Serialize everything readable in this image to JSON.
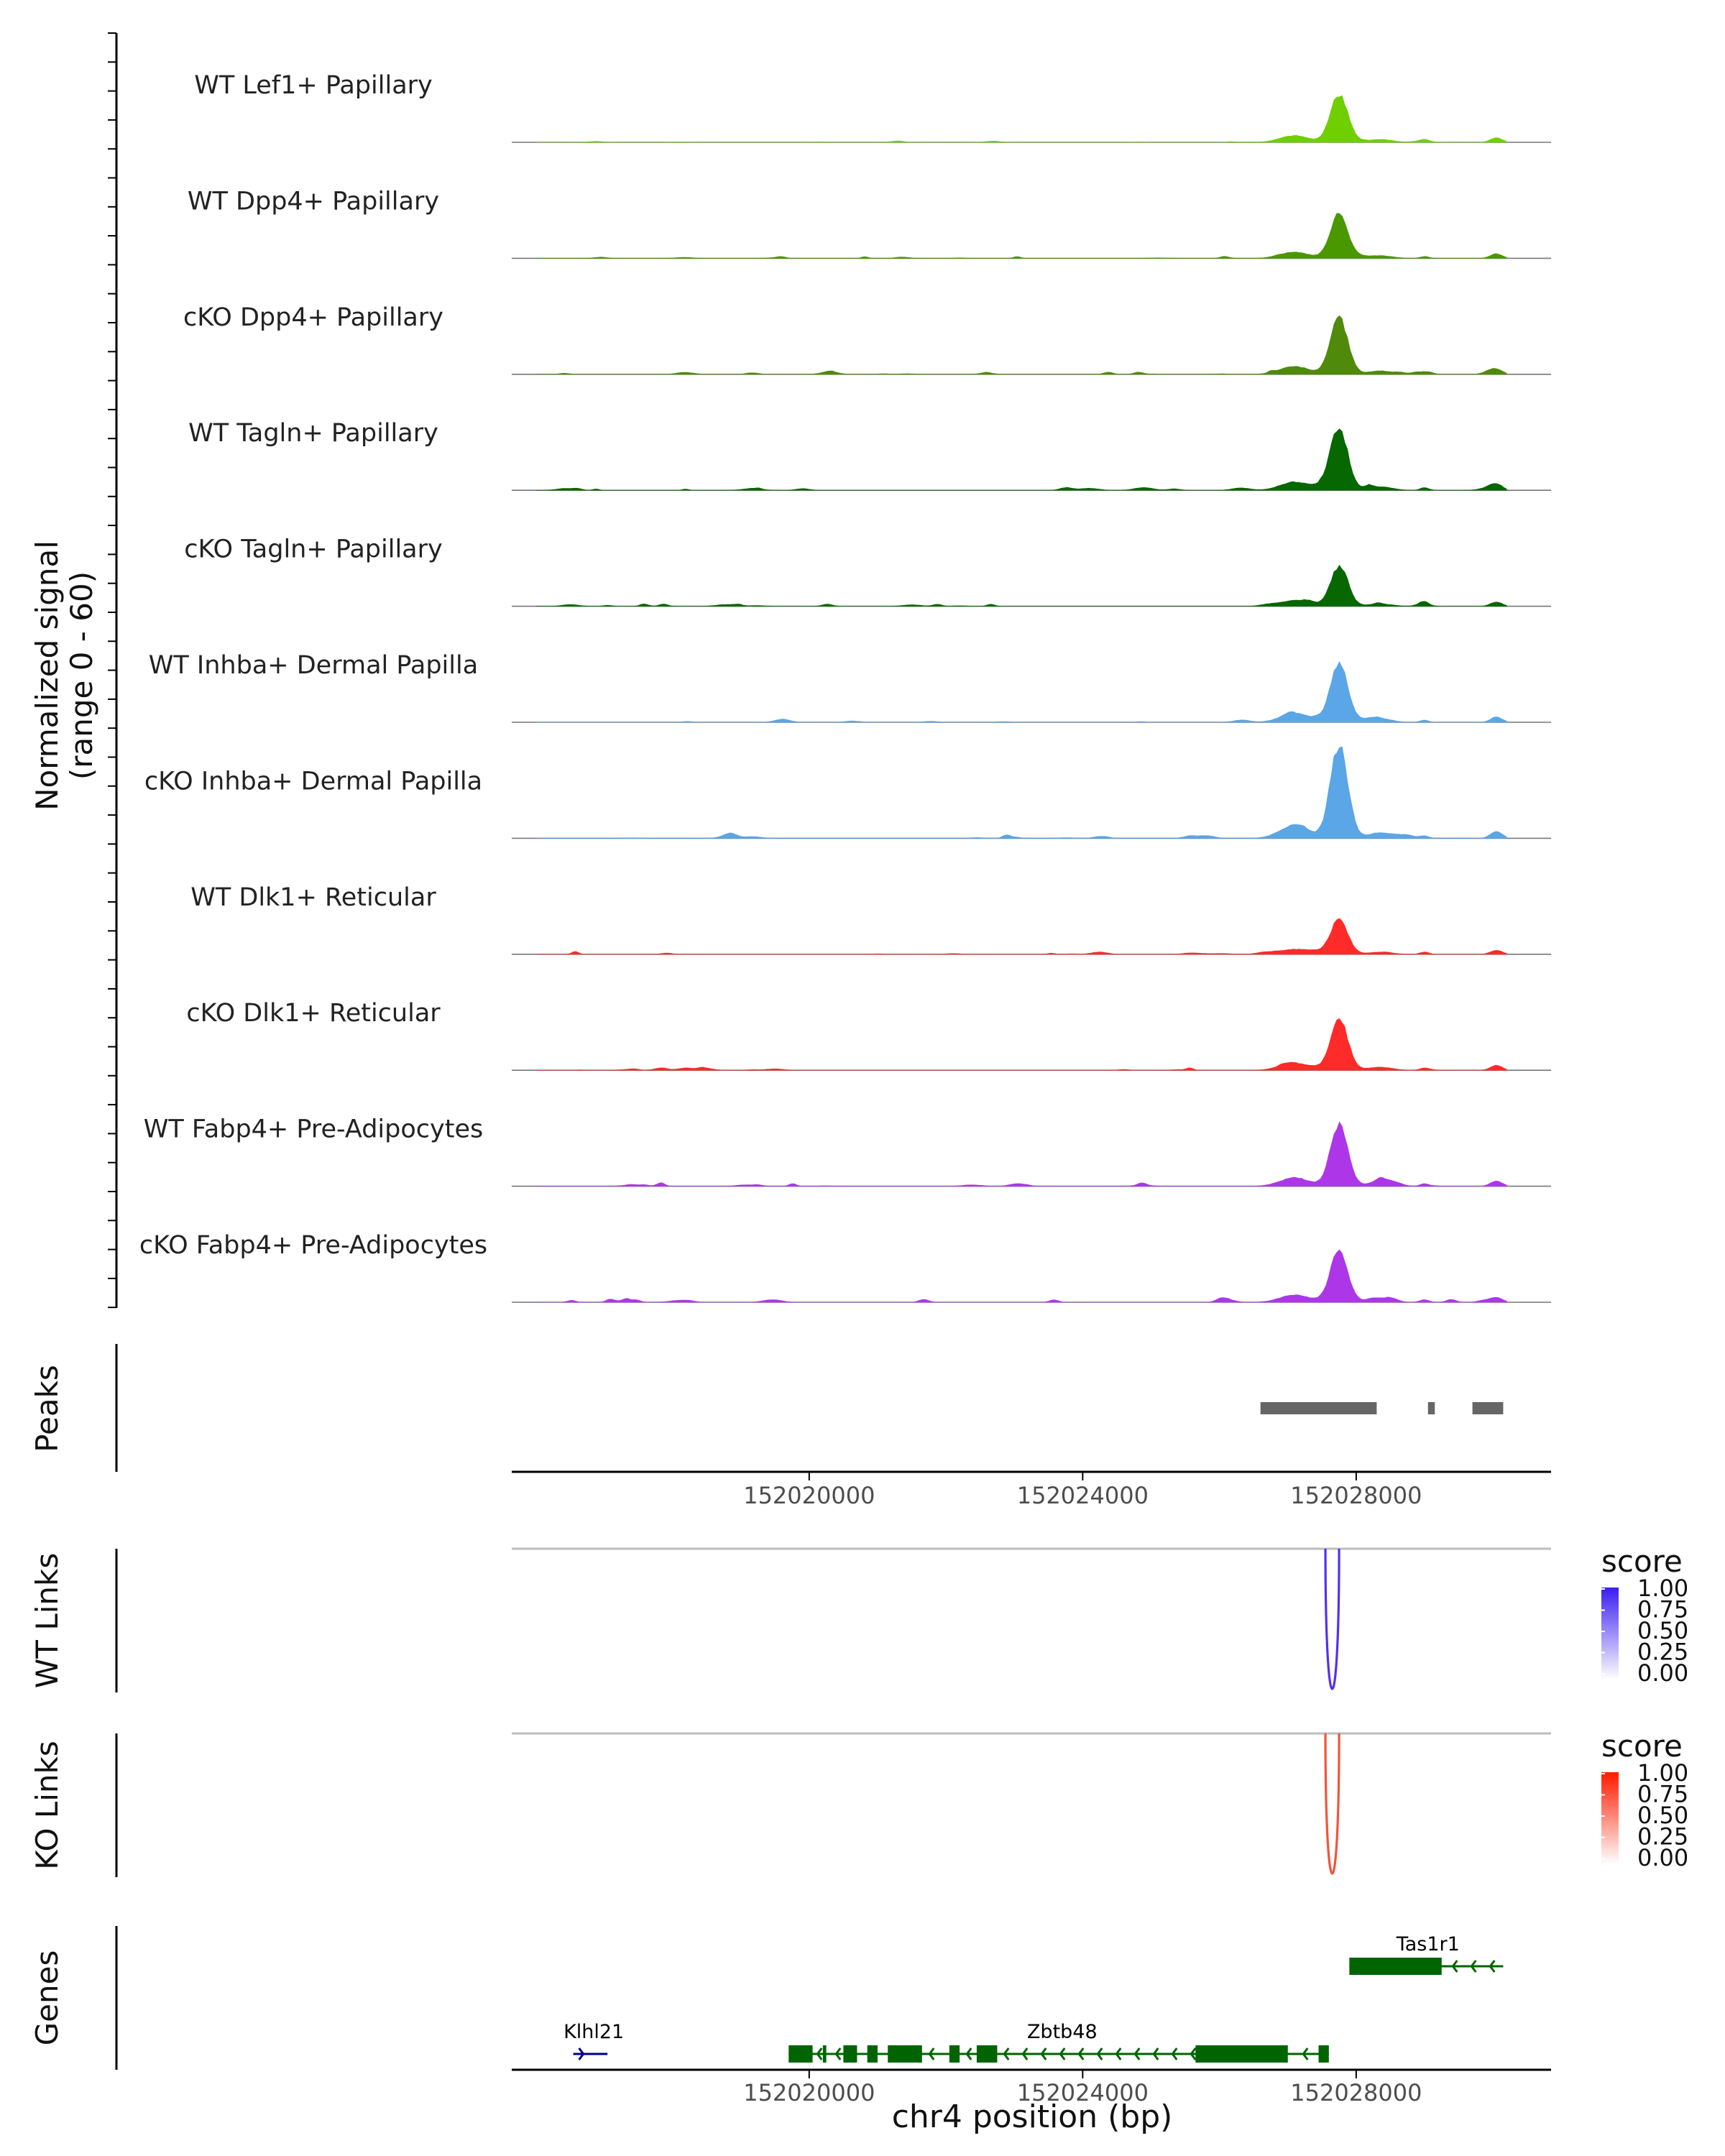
{
  "chart_data": {
    "type": "coverage",
    "region": {
      "chromosome": "chr4",
      "start": 152016000,
      "end": 152030200
    },
    "y_axis_label": "Normalized signal",
    "y_axis_range_label": "(range 0 - 60)",
    "ylim": [
      0,
      60
    ],
    "x_axis_title": "chr4 position (bp)",
    "x_ticks": [
      152020000,
      152024000,
      152028000
    ],
    "x_tick_labels": [
      "152020000",
      "152024000",
      "152028000"
    ],
    "coverage_tracks": [
      {
        "label": "WT Lef1+ Papillary",
        "color": "#6fcf00",
        "main_peak": 40,
        "noise": 0.12,
        "seed": 11
      },
      {
        "label": "WT Dpp4+ Papillary",
        "color": "#4a9800",
        "main_peak": 37,
        "noise": 0.2,
        "seed": 23
      },
      {
        "label": "cKO Dpp4+ Papillary",
        "color": "#4f8a0b",
        "main_peak": 47,
        "noise": 0.22,
        "seed": 37
      },
      {
        "label": "WT Tagln+ Papillary",
        "color": "#076700",
        "main_peak": 50,
        "noise": 0.4,
        "seed": 41
      },
      {
        "label": "cKO Tagln+ Papillary",
        "color": "#076700",
        "main_peak": 33,
        "noise": 0.38,
        "seed": 53
      },
      {
        "label": "WT Inhba+ Dermal Papilla",
        "color": "#5aa6e6",
        "main_peak": 49,
        "noise": 0.28,
        "seed": 61
      },
      {
        "label": "cKO Inhba+ Dermal Papilla",
        "color": "#5aa6e6",
        "main_peak": 78,
        "noise": 0.36,
        "seed": 73
      },
      {
        "label": "WT Dlk1+ Reticular",
        "color": "#ff2a2a",
        "main_peak": 29,
        "noise": 0.32,
        "seed": 83
      },
      {
        "label": "cKO Dlk1+ Reticular",
        "color": "#ff2a2a",
        "main_peak": 43,
        "noise": 0.3,
        "seed": 97
      },
      {
        "label": "WT Fabp4+ Pre-Adipocytes",
        "color": "#ad36e8",
        "main_peak": 51,
        "noise": 0.42,
        "seed": 101
      },
      {
        "label": "cKO Fabp4+ Pre-Adipocytes",
        "color": "#ad36e8",
        "main_peak": 43,
        "noise": 0.42,
        "seed": 113
      }
    ],
    "peaks": {
      "label": "Peaks",
      "color": "#666666",
      "ranges": [
        [
          152026600,
          152028300
        ],
        [
          152029050,
          152029150
        ],
        [
          152029700,
          152030150
        ]
      ]
    },
    "links": [
      {
        "label": "WT Links",
        "color_high": "#3a1df0",
        "color_low": "#ffffff",
        "arc": [
          152027550,
          152027750
        ],
        "score": 0.78,
        "legend_title": "score"
      },
      {
        "label": "KO Links",
        "color_high": "#ff1a00",
        "color_low": "#ffffff",
        "arc": [
          152027550,
          152027750
        ],
        "score": 0.68,
        "legend_title": "score"
      }
    ],
    "legend_ticks": [
      "1.00",
      "0.75",
      "0.50",
      "0.25",
      "0.00"
    ],
    "genes": {
      "label": "Genes",
      "items": [
        {
          "name": "Klhl21",
          "strand": "+",
          "color": "#00008b",
          "start": 152016550,
          "end": 152017050,
          "row": 2,
          "exons": [],
          "label_at": 152016850
        },
        {
          "name": "Zbtb48",
          "strand": "-",
          "color": "#006400",
          "start": 152019700,
          "end": 152027600,
          "row": 2,
          "exons": [
            [
              152019700,
              152020050
            ],
            [
              152020200,
              152020250
            ],
            [
              152020500,
              152020700
            ],
            [
              152020850,
              152021000
            ],
            [
              152021150,
              152021650
            ],
            [
              152022050,
              152022200
            ],
            [
              152022450,
              152022750
            ],
            [
              152025650,
              152027000
            ],
            [
              152027450,
              152027600
            ]
          ],
          "label_at": 152023700
        },
        {
          "name": "Tas1r1",
          "strand": "-",
          "color": "#006400",
          "start": 152027900,
          "end": 152030150,
          "row": 1,
          "exons": [
            [
              152027900,
              152029250
            ]
          ],
          "label_at": 152029050
        }
      ]
    }
  }
}
